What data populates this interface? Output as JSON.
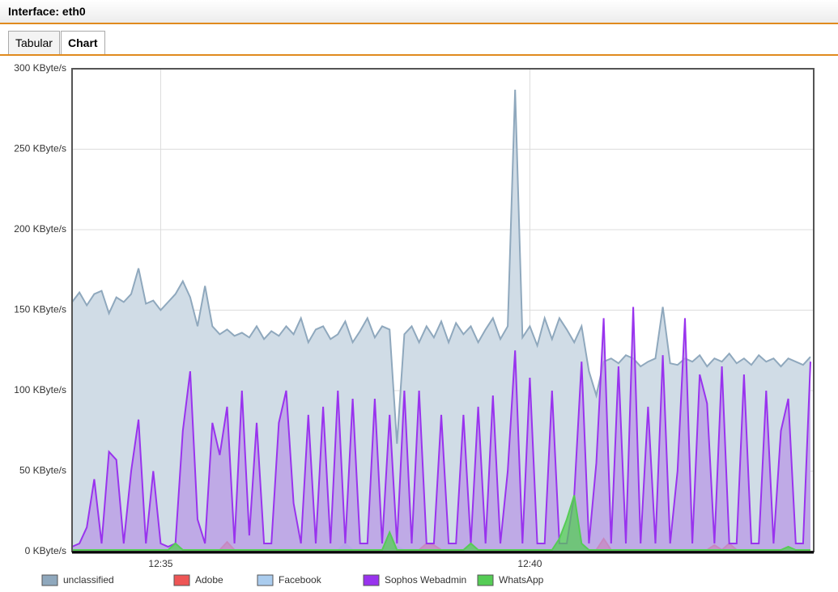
{
  "header": {
    "title": "Interface: eth0"
  },
  "tabs": [
    "Tabular",
    "Chart"
  ],
  "chart_data": {
    "type": "area",
    "categories": [
      null,
      null,
      null,
      null,
      null,
      null,
      null,
      null,
      null,
      null,
      null,
      null,
      "12:35",
      null,
      null,
      null,
      null,
      null,
      null,
      null,
      null,
      null,
      null,
      null,
      null,
      null,
      null,
      null,
      null,
      null,
      null,
      null,
      null,
      null,
      null,
      null,
      null,
      null,
      null,
      null,
      null,
      null,
      null,
      null,
      null,
      null,
      null,
      null,
      null,
      null,
      null,
      null,
      null,
      null,
      null,
      null,
      null,
      null,
      null,
      null,
      null,
      null,
      "12:40",
      null,
      null,
      null,
      null,
      null,
      null,
      null,
      null,
      null,
      null,
      null,
      null,
      null,
      null,
      null,
      null,
      null,
      null,
      null,
      null,
      null,
      null,
      null,
      null,
      null,
      null,
      null,
      null,
      null,
      null,
      null,
      null,
      null,
      null,
      null,
      null,
      null,
      null
    ],
    "ylim": [
      0,
      300
    ],
    "yticks": [
      {
        "value": 0,
        "label": "0 KByte/s"
      },
      {
        "value": 50,
        "label": "50 KByte/s"
      },
      {
        "value": 100,
        "label": "100 KByte/s"
      },
      {
        "value": 150,
        "label": "150 KByte/s"
      },
      {
        "value": 200,
        "label": "200 KByte/s"
      },
      {
        "value": 250,
        "label": "250 KByte/s"
      },
      {
        "value": 300,
        "label": "300 KByte/s"
      }
    ],
    "grid": true,
    "series": [
      {
        "name": "unclassified",
        "color": "#8fa8bd",
        "fill": "#d0dce6",
        "values": [
          155,
          161,
          153,
          160,
          162,
          148,
          158,
          155,
          160,
          176,
          154,
          156,
          150,
          155,
          160,
          168,
          158,
          140,
          165,
          140,
          135,
          138,
          134,
          136,
          133,
          140,
          132,
          137,
          134,
          140,
          135,
          145,
          130,
          138,
          140,
          132,
          135,
          143,
          130,
          137,
          145,
          133,
          140,
          138,
          67,
          135,
          140,
          130,
          140,
          133,
          143,
          130,
          142,
          135,
          140,
          130,
          138,
          145,
          132,
          140,
          287,
          133,
          140,
          128,
          145,
          132,
          145,
          138,
          130,
          140,
          112,
          97,
          118,
          120,
          117,
          122,
          120,
          115,
          118,
          120,
          152,
          117,
          116,
          120,
          118,
          122,
          115,
          120,
          118,
          123,
          117,
          120,
          116,
          122,
          118,
          120,
          115,
          120,
          118,
          116,
          121
        ]
      },
      {
        "name": "Adobe",
        "color": "#ee5555",
        "fill": "#ee5555",
        "values": [
          1,
          1,
          1,
          1,
          1,
          1,
          1,
          1,
          1,
          1,
          1,
          1,
          1,
          1,
          1,
          1,
          1,
          1,
          1,
          1,
          1,
          6,
          1,
          1,
          1,
          1,
          1,
          1,
          1,
          1,
          1,
          1,
          1,
          1,
          1,
          1,
          1,
          1,
          1,
          1,
          1,
          1,
          1,
          1,
          1,
          1,
          1,
          1,
          5,
          4,
          1,
          1,
          1,
          1,
          1,
          1,
          1,
          1,
          1,
          1,
          1,
          1,
          1,
          1,
          1,
          1,
          1,
          1,
          1,
          1,
          1,
          1,
          8,
          1,
          1,
          1,
          1,
          1,
          1,
          1,
          1,
          1,
          1,
          1,
          1,
          1,
          1,
          4,
          1,
          5,
          1,
          1,
          1,
          1,
          1,
          1,
          1,
          1,
          1,
          1,
          1
        ]
      },
      {
        "name": "Facebook",
        "color": "#aaccee",
        "fill": "#aaccee",
        "values": [
          1,
          1,
          1,
          1,
          1,
          1,
          1,
          1,
          1,
          1,
          1,
          1,
          1,
          1,
          1,
          1,
          1,
          1,
          1,
          1,
          1,
          1,
          1,
          1,
          1,
          1,
          1,
          1,
          1,
          1,
          1,
          1,
          1,
          1,
          1,
          1,
          1,
          5,
          1,
          1,
          1,
          1,
          1,
          1,
          3,
          1,
          1,
          1,
          1,
          1,
          1,
          1,
          1,
          1,
          1,
          1,
          1,
          1,
          1,
          1,
          1,
          1,
          1,
          1,
          1,
          1,
          1,
          1,
          1,
          1,
          1,
          1,
          1,
          1,
          1,
          1,
          1,
          1,
          1,
          1,
          1,
          1,
          1,
          1,
          1,
          1,
          1,
          1,
          1,
          1,
          1,
          1,
          1,
          1,
          1,
          1,
          1,
          1,
          1,
          1,
          1
        ]
      },
      {
        "name": "Sophos Webadmin",
        "color": "#9933ee",
        "fill": "#b999e6",
        "values": [
          3,
          5,
          15,
          45,
          5,
          62,
          57,
          5,
          50,
          82,
          5,
          50,
          5,
          3,
          5,
          75,
          112,
          20,
          5,
          80,
          60,
          90,
          5,
          100,
          10,
          80,
          5,
          5,
          80,
          100,
          30,
          5,
          85,
          5,
          90,
          5,
          100,
          5,
          95,
          5,
          5,
          95,
          5,
          85,
          5,
          100,
          5,
          100,
          5,
          5,
          85,
          5,
          5,
          85,
          5,
          90,
          5,
          97,
          5,
          50,
          125,
          5,
          108,
          5,
          5,
          100,
          5,
          5,
          35,
          118,
          5,
          55,
          145,
          5,
          115,
          5,
          152,
          5,
          90,
          5,
          122,
          5,
          50,
          145,
          5,
          110,
          92,
          5,
          115,
          5,
          5,
          110,
          5,
          5,
          100,
          5,
          75,
          95,
          5,
          5,
          118
        ]
      },
      {
        "name": "WhatsApp",
        "color": "#55cc55",
        "fill": "#55cc55",
        "values": [
          1,
          1,
          1,
          1,
          1,
          1,
          1,
          1,
          1,
          1,
          1,
          1,
          1,
          1,
          5,
          1,
          1,
          1,
          1,
          1,
          1,
          1,
          1,
          1,
          1,
          1,
          1,
          1,
          1,
          1,
          1,
          1,
          1,
          1,
          1,
          1,
          1,
          1,
          1,
          1,
          1,
          1,
          1,
          12,
          1,
          1,
          1,
          1,
          1,
          1,
          1,
          1,
          1,
          1,
          5,
          1,
          1,
          1,
          1,
          1,
          1,
          1,
          1,
          1,
          1,
          1,
          8,
          20,
          35,
          5,
          1,
          1,
          1,
          1,
          1,
          1,
          1,
          1,
          1,
          1,
          1,
          1,
          1,
          1,
          1,
          1,
          1,
          1,
          1,
          1,
          1,
          1,
          1,
          1,
          1,
          1,
          1,
          3,
          1,
          1,
          1
        ]
      }
    ]
  }
}
